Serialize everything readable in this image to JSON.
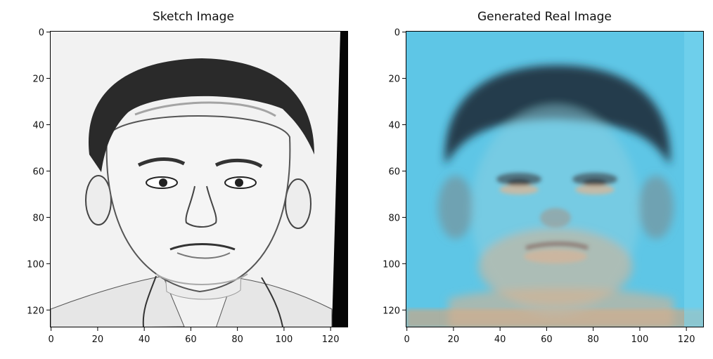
{
  "figure": {
    "panels": [
      {
        "title": "Sketch Image",
        "image_description": "pencil sketch portrait",
        "x_ticks": [
          "0",
          "20",
          "40",
          "60",
          "80",
          "100",
          "120"
        ],
        "y_ticks": [
          "0",
          "20",
          "40",
          "60",
          "80",
          "100",
          "120"
        ]
      },
      {
        "title": "Generated Real Image",
        "image_description": "generated face image on blue background",
        "x_ticks": [
          "0",
          "20",
          "40",
          "60",
          "80",
          "100",
          "120"
        ],
        "y_ticks": [
          "0",
          "20",
          "40",
          "60",
          "80",
          "100",
          "120"
        ]
      }
    ],
    "axis_range": [
      0,
      128
    ],
    "colors": {
      "sketch_bg": "#f4f4f4",
      "generated_bg": "#5cc4e4"
    }
  }
}
